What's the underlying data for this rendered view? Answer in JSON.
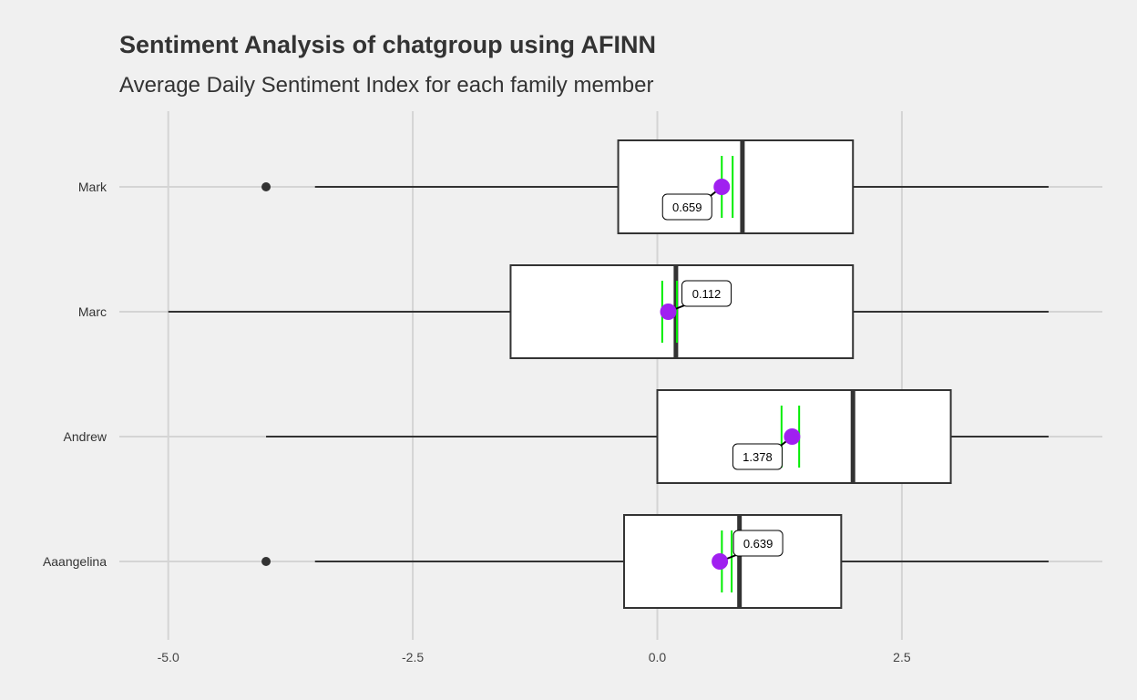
{
  "title": "Sentiment Analysis of chatgroup using AFINN",
  "subtitle": "Average Daily Sentiment Index for each family member",
  "colors": {
    "background": "#f0f0f0",
    "grid": "#d4d4d4",
    "box_fill": "#ffffff",
    "box_stroke": "#333333",
    "mean_point": "#a020f0",
    "ci_lines": "#00ee00",
    "text": "#333333"
  },
  "chart_data": {
    "type": "boxplot",
    "orientation": "horizontal",
    "xlim": [
      -5.5,
      4.55
    ],
    "x_ticks": [
      -5,
      -2.5,
      0,
      2.5
    ],
    "x_tick_labels": [
      "-5.0",
      "-2.5",
      "0.0",
      "2.5"
    ],
    "grid": true,
    "categories": [
      "Mark",
      "Marc",
      "Andrew",
      "Aaangelina"
    ],
    "boxes": [
      {
        "category": "Mark",
        "whisker_low": -3.5,
        "q1": -0.4,
        "median": 0.87,
        "q3": 2,
        "whisker_high": 4,
        "outliers": [
          -4
        ],
        "mean": 0.659,
        "mean_label": "0.659",
        "ci": [
          0.659,
          0.77
        ],
        "label_side": "below"
      },
      {
        "category": "Marc",
        "whisker_low": -5,
        "q1": -1.5,
        "median": 0.19,
        "q3": 2,
        "whisker_high": 4,
        "outliers": [],
        "mean": 0.112,
        "mean_label": "0.112",
        "ci": [
          0.05,
          0.2
        ],
        "label_side": "above"
      },
      {
        "category": "Andrew",
        "whisker_low": -4,
        "q1": 0,
        "median": 2,
        "q3": 3,
        "whisker_high": 4,
        "outliers": [],
        "mean": 1.378,
        "mean_label": "1.378",
        "ci": [
          1.27,
          1.45
        ],
        "label_side": "below"
      },
      {
        "category": "Aaangelina",
        "whisker_low": -3.5,
        "q1": -0.34,
        "median": 0.84,
        "q3": 1.88,
        "whisker_high": 4,
        "outliers": [
          -4
        ],
        "mean": 0.639,
        "mean_label": "0.639",
        "ci": [
          0.66,
          0.76
        ],
        "label_side": "above"
      }
    ]
  }
}
